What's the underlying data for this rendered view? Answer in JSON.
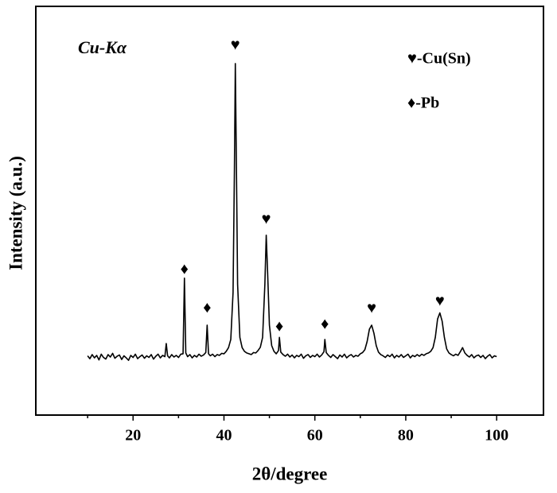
{
  "chart_data": {
    "type": "line",
    "xlabel": "2θ/degree",
    "ylabel": "Intensity (a.u.)",
    "inset_label": "Cu-Kα",
    "legend_entries": [
      "♥-Cu(Sn)",
      "♦-Pb"
    ],
    "xlim": [
      -1.4,
      110.3
    ],
    "ylim": [
      0,
      100
    ],
    "xticks": [
      20,
      40,
      60,
      80,
      100
    ],
    "xminorticks": [
      10,
      30,
      50,
      70,
      90
    ],
    "x": [
      10,
      10.5,
      11,
      11.5,
      12,
      12.5,
      13,
      13.5,
      14,
      14.5,
      15,
      15.5,
      16,
      16.5,
      17,
      17.5,
      18,
      18.5,
      19,
      19.5,
      20,
      20.5,
      21,
      21.5,
      22,
      22.5,
      23,
      23.5,
      24,
      24.5,
      25,
      25.5,
      26,
      26.5,
      27,
      27.3,
      27.6,
      28,
      28.5,
      29,
      29.5,
      30,
      30.5,
      31,
      31.3,
      31.6,
      32,
      32.5,
      33,
      33.5,
      34,
      34.5,
      35,
      35.5,
      36,
      36.3,
      36.6,
      37,
      37.5,
      38,
      38.5,
      39,
      39.5,
      40,
      40.5,
      41,
      41.5,
      42,
      42.3,
      42.5,
      42.7,
      43,
      43.5,
      44,
      44.5,
      45,
      45.5,
      46,
      46.5,
      47,
      47.5,
      48,
      48.5,
      49,
      49.3,
      49.6,
      50,
      50.5,
      51,
      51.5,
      52,
      52.2,
      52.5,
      53,
      53.5,
      54,
      54.5,
      55,
      55.5,
      56,
      56.5,
      57,
      57.5,
      58,
      58.5,
      59,
      59.5,
      60,
      60.5,
      61,
      61.5,
      62,
      62.2,
      62.5,
      63,
      63.5,
      64,
      64.5,
      65,
      65.5,
      66,
      66.5,
      67,
      67.5,
      68,
      68.5,
      69,
      69.5,
      70,
      70.5,
      71,
      71.5,
      72,
      72.5,
      73,
      73.5,
      74,
      74.5,
      75,
      75.5,
      76,
      76.5,
      77,
      77.5,
      78,
      78.5,
      79,
      79.5,
      80,
      80.5,
      81,
      81.5,
      82,
      82.5,
      83,
      83.5,
      84,
      84.5,
      85,
      85.5,
      86,
      86.5,
      87,
      87.5,
      88,
      88.5,
      89,
      89.5,
      90,
      90.5,
      91,
      91.5,
      92,
      92.5,
      93,
      93.5,
      94,
      94.5,
      95,
      95.5,
      96,
      96.5,
      97,
      97.5,
      98,
      98.5,
      99,
      99.5,
      100
    ],
    "series": [
      {
        "color": "#000000",
        "values": [
          14.5,
          13.8,
          14.8,
          14.0,
          14.6,
          13.5,
          14.9,
          14.1,
          13.7,
          14.8,
          14.2,
          15.1,
          13.9,
          14.4,
          14.7,
          13.6,
          14.5,
          14.0,
          13.4,
          14.6,
          14.1,
          14.9,
          13.8,
          14.3,
          14.7,
          13.9,
          14.5,
          14.1,
          14.8,
          13.7,
          14.4,
          14.9,
          14.0,
          14.6,
          14.3,
          17.5,
          14.5,
          14.0,
          14.8,
          14.2,
          14.6,
          14.1,
          14.9,
          15.0,
          33.5,
          15.2,
          14.3,
          14.8,
          14.0,
          14.6,
          14.2,
          14.9,
          14.4,
          14.7,
          15.3,
          22.0,
          15.0,
          14.5,
          14.9,
          14.3,
          14.8,
          14.6,
          15.1,
          15.0,
          15.6,
          16.5,
          18.5,
          30,
          60,
          86,
          65,
          32,
          19,
          16.5,
          15.6,
          15.2,
          15.0,
          14.8,
          15.3,
          15.2,
          15.8,
          16.6,
          19,
          32,
          44,
          35,
          22,
          17,
          15.6,
          15.0,
          15.8,
          19,
          15.4,
          14.8,
          14.4,
          14.9,
          14.2,
          14.7,
          14.0,
          14.6,
          14.3,
          14.9,
          13.9,
          14.5,
          14.8,
          14.1,
          14.6,
          14.3,
          14.9,
          14.2,
          14.7,
          15.5,
          18.5,
          15.3,
          14.6,
          14.1,
          14.8,
          14.3,
          13.8,
          14.7,
          14.2,
          14.9,
          14.0,
          14.5,
          14.8,
          14.2,
          14.6,
          14.4,
          15.0,
          15.3,
          16.0,
          18,
          21,
          22,
          20,
          17,
          15.4,
          14.8,
          14.5,
          14.1,
          14.7,
          14.3,
          14.9,
          14.0,
          14.6,
          14.2,
          14.8,
          14.1,
          14.5,
          14.9,
          14.0,
          14.6,
          14.3,
          14.8,
          14.4,
          14.9,
          14.6,
          15.0,
          15.2,
          15.6,
          16.5,
          19,
          23.5,
          25,
          23,
          19,
          16.2,
          15.2,
          14.8,
          14.5,
          14.9,
          14.6,
          15.5,
          16.5,
          15.2,
          14.6,
          14.2,
          14.8,
          14.0,
          14.5,
          14.7,
          14.1,
          14.6,
          13.8,
          14.4,
          14.8,
          14.0,
          14.5,
          14.3
        ]
      }
    ],
    "peak_markers": [
      {
        "text": "♦",
        "x": 31.3,
        "y": 35.4
      },
      {
        "text": "♦",
        "x": 36.3,
        "y": 26
      },
      {
        "text": "♥",
        "x": 42.5,
        "y": 90.3
      },
      {
        "text": "♥",
        "x": 49.3,
        "y": 47.7
      },
      {
        "text": "♦",
        "x": 52.2,
        "y": 21.4
      },
      {
        "text": "♦",
        "x": 62.2,
        "y": 22
      },
      {
        "text": "♥",
        "x": 72.5,
        "y": 25.9
      },
      {
        "text": "♥",
        "x": 87.5,
        "y": 27.6
      }
    ]
  }
}
